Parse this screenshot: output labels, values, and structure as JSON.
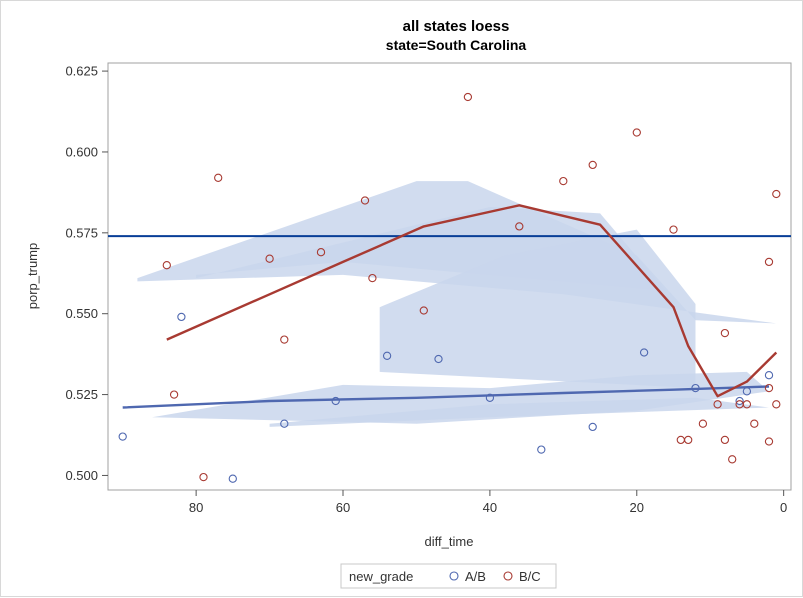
{
  "chart_data": {
    "type": "scatter",
    "title": "all states loess",
    "subtitle": "state=South Carolina",
    "xlabel": "diff_time",
    "ylabel": "porp_trump",
    "xlim": [
      92,
      -1
    ],
    "ylim": [
      0.4955,
      0.6275
    ],
    "x_reversed": true,
    "x_ticks": [
      80,
      60,
      40,
      20,
      0
    ],
    "y_ticks": [
      0.5,
      0.525,
      0.55,
      0.575,
      0.6,
      0.625
    ],
    "y_tick_labels": [
      "0.500",
      "0.525",
      "0.550",
      "0.575",
      "0.600",
      "0.625"
    ],
    "grid": false,
    "reference_line": {
      "y": 0.574,
      "color": "#083e97"
    },
    "legend": {
      "title": "new_grade",
      "placement": "bottom",
      "entries": [
        "A/B",
        "B/C"
      ]
    },
    "band_color": "#c9d6ec",
    "series": [
      {
        "name": "A/B",
        "color": "#4f68b0",
        "points": [
          [
            90,
            0.512
          ],
          [
            82,
            0.549
          ],
          [
            75,
            0.499
          ],
          [
            68,
            0.516
          ],
          [
            61,
            0.523
          ],
          [
            54,
            0.537
          ],
          [
            47,
            0.536
          ],
          [
            40,
            0.524
          ],
          [
            33,
            0.508
          ],
          [
            26,
            0.515
          ],
          [
            19,
            0.538
          ],
          [
            12,
            0.527
          ],
          [
            6,
            0.523
          ],
          [
            5,
            0.526
          ],
          [
            2,
            0.531
          ]
        ],
        "loess": [
          [
            90,
            0.521
          ],
          [
            70,
            0.523
          ],
          [
            50,
            0.524
          ],
          [
            30,
            0.5255
          ],
          [
            15,
            0.5265
          ],
          [
            2,
            0.5275
          ]
        ]
      },
      {
        "name": "B/C",
        "color": "#a83a32",
        "points": [
          [
            84,
            0.565
          ],
          [
            83,
            0.525
          ],
          [
            79,
            0.4995
          ],
          [
            77,
            0.592
          ],
          [
            70,
            0.567
          ],
          [
            68,
            0.542
          ],
          [
            63,
            0.569
          ],
          [
            57,
            0.585
          ],
          [
            56,
            0.561
          ],
          [
            49,
            0.551
          ],
          [
            43,
            0.617
          ],
          [
            36,
            0.577
          ],
          [
            30,
            0.591
          ],
          [
            26,
            0.596
          ],
          [
            20,
            0.606
          ],
          [
            15,
            0.576
          ],
          [
            14,
            0.511
          ],
          [
            13,
            0.511
          ],
          [
            11,
            0.516
          ],
          [
            9,
            0.522
          ],
          [
            8,
            0.544
          ],
          [
            8,
            0.511
          ],
          [
            7,
            0.505
          ],
          [
            6,
            0.522
          ],
          [
            5,
            0.522
          ],
          [
            4,
            0.516
          ],
          [
            2,
            0.566
          ],
          [
            2,
            0.527
          ],
          [
            2,
            0.5105
          ],
          [
            1,
            0.587
          ],
          [
            1,
            0.522
          ]
        ],
        "loess": [
          [
            84,
            0.542
          ],
          [
            70,
            0.556
          ],
          [
            60,
            0.566
          ],
          [
            49,
            0.577
          ],
          [
            36,
            0.5835
          ],
          [
            25,
            0.5775
          ],
          [
            15,
            0.552
          ],
          [
            13,
            0.54
          ],
          [
            9,
            0.5245
          ],
          [
            5,
            0.529
          ],
          [
            1,
            0.538
          ]
        ]
      }
    ]
  }
}
